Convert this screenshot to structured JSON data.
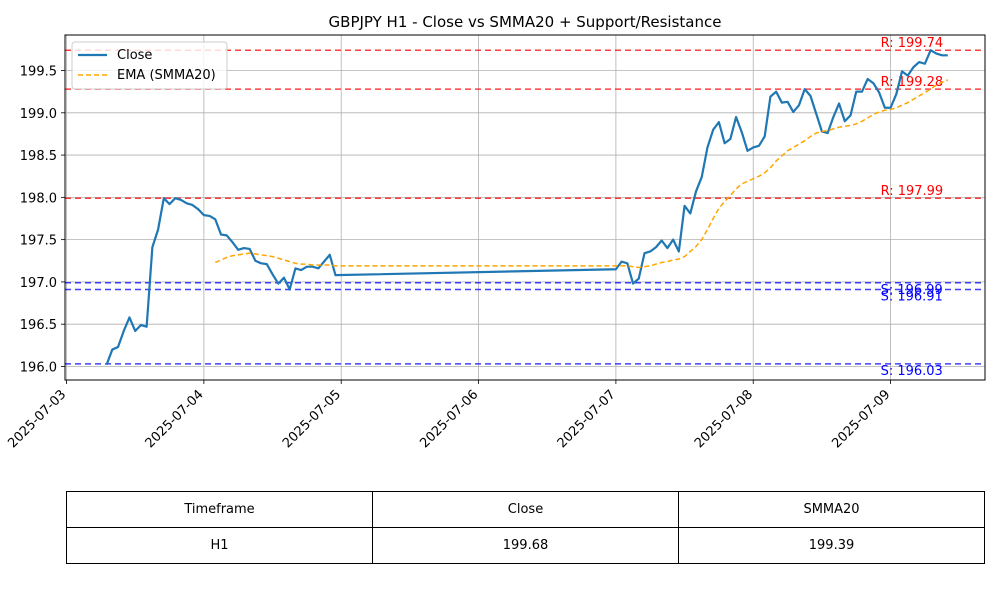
{
  "chart_data": {
    "type": "line",
    "title": "GBPJPY H1 - Close vs SMMA20 + Support/Resistance",
    "xlabel": "",
    "ylabel": "",
    "x_ticks": [
      "2025-07-03",
      "2025-07-04",
      "2025-07-05",
      "2025-07-06",
      "2025-07-07",
      "2025-07-08",
      "2025-07-09"
    ],
    "y_ticks": [
      "196.0",
      "196.5",
      "197.0",
      "197.5",
      "198.0",
      "198.5",
      "199.0",
      "199.5"
    ],
    "xlim": [
      "2025-07-02T23:44",
      "2025-07-09T16:30"
    ],
    "ylim": [
      195.84,
      199.92
    ],
    "grid": true,
    "legend_position": "top-left",
    "series": [
      {
        "name": "Close",
        "color": "#1f77b4",
        "style": "solid",
        "points": [
          [
            "2025-07-03T07:00",
            196.02
          ],
          [
            "2025-07-03T08:00",
            196.2
          ],
          [
            "2025-07-03T09:00",
            196.23
          ],
          [
            "2025-07-03T10:00",
            196.42
          ],
          [
            "2025-07-03T11:00",
            196.58
          ],
          [
            "2025-07-03T12:00",
            196.42
          ],
          [
            "2025-07-03T13:00",
            196.49
          ],
          [
            "2025-07-03T14:00",
            196.47
          ],
          [
            "2025-07-03T15:00",
            197.41
          ],
          [
            "2025-07-03T16:00",
            197.62
          ],
          [
            "2025-07-03T17:00",
            197.99
          ],
          [
            "2025-07-03T18:00",
            197.92
          ],
          [
            "2025-07-03T19:00",
            197.99
          ],
          [
            "2025-07-03T20:00",
            197.97
          ],
          [
            "2025-07-03T21:00",
            197.93
          ],
          [
            "2025-07-03T22:00",
            197.91
          ],
          [
            "2025-07-03T23:00",
            197.86
          ],
          [
            "2025-07-04T00:00",
            197.79
          ],
          [
            "2025-07-04T01:00",
            197.78
          ],
          [
            "2025-07-04T02:00",
            197.74
          ],
          [
            "2025-07-04T03:00",
            197.56
          ],
          [
            "2025-07-04T04:00",
            197.55
          ],
          [
            "2025-07-04T05:00",
            197.47
          ],
          [
            "2025-07-04T06:00",
            197.38
          ],
          [
            "2025-07-04T07:00",
            197.4
          ],
          [
            "2025-07-04T08:00",
            197.39
          ],
          [
            "2025-07-04T09:00",
            197.25
          ],
          [
            "2025-07-04T10:00",
            197.22
          ],
          [
            "2025-07-04T11:00",
            197.21
          ],
          [
            "2025-07-04T12:00",
            197.09
          ],
          [
            "2025-07-04T13:00",
            196.98
          ],
          [
            "2025-07-04T14:00",
            197.05
          ],
          [
            "2025-07-04T15:00",
            196.91
          ],
          [
            "2025-07-04T16:00",
            197.16
          ],
          [
            "2025-07-04T17:00",
            197.14
          ],
          [
            "2025-07-04T18:00",
            197.18
          ],
          [
            "2025-07-04T19:00",
            197.18
          ],
          [
            "2025-07-04T20:00",
            197.16
          ],
          [
            "2025-07-04T21:00",
            197.24
          ],
          [
            "2025-07-04T22:00",
            197.32
          ],
          [
            "2025-07-04T23:00",
            197.08
          ],
          [
            "2025-07-07T00:00",
            197.15
          ],
          [
            "2025-07-07T01:00",
            197.24
          ],
          [
            "2025-07-07T02:00",
            197.22
          ],
          [
            "2025-07-07T03:00",
            196.98
          ],
          [
            "2025-07-07T04:00",
            197.04
          ],
          [
            "2025-07-07T05:00",
            197.34
          ],
          [
            "2025-07-07T06:00",
            197.36
          ],
          [
            "2025-07-07T07:00",
            197.41
          ],
          [
            "2025-07-07T08:00",
            197.49
          ],
          [
            "2025-07-07T09:00",
            197.4
          ],
          [
            "2025-07-07T10:00",
            197.5
          ],
          [
            "2025-07-07T11:00",
            197.36
          ],
          [
            "2025-07-07T12:00",
            197.9
          ],
          [
            "2025-07-07T13:00",
            197.81
          ],
          [
            "2025-07-07T14:00",
            198.07
          ],
          [
            "2025-07-07T15:00",
            198.24
          ],
          [
            "2025-07-07T16:00",
            198.59
          ],
          [
            "2025-07-07T17:00",
            198.8
          ],
          [
            "2025-07-07T18:00",
            198.89
          ],
          [
            "2025-07-07T19:00",
            198.64
          ],
          [
            "2025-07-07T20:00",
            198.69
          ],
          [
            "2025-07-07T21:00",
            198.95
          ],
          [
            "2025-07-07T22:00",
            198.77
          ],
          [
            "2025-07-07T23:00",
            198.55
          ],
          [
            "2025-07-08T00:00",
            198.59
          ],
          [
            "2025-07-08T01:00",
            198.61
          ],
          [
            "2025-07-08T02:00",
            198.72
          ],
          [
            "2025-07-08T03:00",
            199.19
          ],
          [
            "2025-07-08T04:00",
            199.25
          ],
          [
            "2025-07-08T05:00",
            199.12
          ],
          [
            "2025-07-08T06:00",
            199.13
          ],
          [
            "2025-07-08T07:00",
            199.01
          ],
          [
            "2025-07-08T08:00",
            199.09
          ],
          [
            "2025-07-08T09:00",
            199.28
          ],
          [
            "2025-07-08T10:00",
            199.2
          ],
          [
            "2025-07-08T11:00",
            198.99
          ],
          [
            "2025-07-08T12:00",
            198.78
          ],
          [
            "2025-07-08T13:00",
            198.76
          ],
          [
            "2025-07-08T14:00",
            198.95
          ],
          [
            "2025-07-08T15:00",
            199.11
          ],
          [
            "2025-07-08T16:00",
            198.9
          ],
          [
            "2025-07-08T17:00",
            198.97
          ],
          [
            "2025-07-08T18:00",
            199.25
          ],
          [
            "2025-07-08T19:00",
            199.25
          ],
          [
            "2025-07-08T20:00",
            199.4
          ],
          [
            "2025-07-08T21:00",
            199.35
          ],
          [
            "2025-07-08T22:00",
            199.24
          ],
          [
            "2025-07-08T23:00",
            199.06
          ],
          [
            "2025-07-09T00:00",
            199.06
          ],
          [
            "2025-07-09T01:00",
            199.22
          ],
          [
            "2025-07-09T02:00",
            199.49
          ],
          [
            "2025-07-09T03:00",
            199.44
          ],
          [
            "2025-07-09T04:00",
            199.54
          ],
          [
            "2025-07-09T05:00",
            199.6
          ],
          [
            "2025-07-09T06:00",
            199.58
          ],
          [
            "2025-07-09T07:00",
            199.74
          ],
          [
            "2025-07-09T08:00",
            199.7
          ],
          [
            "2025-07-09T09:00",
            199.68
          ],
          [
            "2025-07-09T10:00",
            199.68
          ]
        ]
      },
      {
        "name": "EMA (SMMA20)",
        "color": "#ffa500",
        "style": "dashed",
        "points": [
          [
            "2025-07-04T02:00",
            197.23
          ],
          [
            "2025-07-04T03:00",
            197.26
          ],
          [
            "2025-07-04T04:00",
            197.29
          ],
          [
            "2025-07-04T05:00",
            197.31
          ],
          [
            "2025-07-04T06:00",
            197.32
          ],
          [
            "2025-07-04T07:00",
            197.33
          ],
          [
            "2025-07-04T08:00",
            197.34
          ],
          [
            "2025-07-04T09:00",
            197.33
          ],
          [
            "2025-07-04T10:00",
            197.32
          ],
          [
            "2025-07-04T11:00",
            197.31
          ],
          [
            "2025-07-04T12:00",
            197.3
          ],
          [
            "2025-07-04T13:00",
            197.28
          ],
          [
            "2025-07-04T14:00",
            197.26
          ],
          [
            "2025-07-04T15:00",
            197.24
          ],
          [
            "2025-07-04T16:00",
            197.22
          ],
          [
            "2025-07-04T17:00",
            197.21
          ],
          [
            "2025-07-04T18:00",
            197.21
          ],
          [
            "2025-07-04T19:00",
            197.2
          ],
          [
            "2025-07-04T20:00",
            197.2
          ],
          [
            "2025-07-04T21:00",
            197.2
          ],
          [
            "2025-07-04T22:00",
            197.2
          ],
          [
            "2025-07-04T23:00",
            197.19
          ],
          [
            "2025-07-07T00:00",
            197.19
          ],
          [
            "2025-07-07T01:00",
            197.19
          ],
          [
            "2025-07-07T02:00",
            197.19
          ],
          [
            "2025-07-07T03:00",
            197.18
          ],
          [
            "2025-07-07T04:00",
            197.17
          ],
          [
            "2025-07-07T05:00",
            197.18
          ],
          [
            "2025-07-07T06:00",
            197.19
          ],
          [
            "2025-07-07T07:00",
            197.21
          ],
          [
            "2025-07-07T08:00",
            197.23
          ],
          [
            "2025-07-07T09:00",
            197.24
          ],
          [
            "2025-07-07T10:00",
            197.26
          ],
          [
            "2025-07-07T11:00",
            197.27
          ],
          [
            "2025-07-07T12:00",
            197.3
          ],
          [
            "2025-07-07T13:00",
            197.36
          ],
          [
            "2025-07-07T14:00",
            197.42
          ],
          [
            "2025-07-07T15:00",
            197.5
          ],
          [
            "2025-07-07T16:00",
            197.62
          ],
          [
            "2025-07-07T17:00",
            197.75
          ],
          [
            "2025-07-07T18:00",
            197.87
          ],
          [
            "2025-07-07T19:00",
            197.95
          ],
          [
            "2025-07-07T20:00",
            198.02
          ],
          [
            "2025-07-07T21:00",
            198.1
          ],
          [
            "2025-07-07T22:00",
            198.16
          ],
          [
            "2025-07-07T23:00",
            198.19
          ],
          [
            "2025-07-08T00:00",
            198.22
          ],
          [
            "2025-07-08T01:00",
            198.25
          ],
          [
            "2025-07-08T02:00",
            198.29
          ],
          [
            "2025-07-08T03:00",
            198.35
          ],
          [
            "2025-07-08T04:00",
            198.43
          ],
          [
            "2025-07-08T05:00",
            198.49
          ],
          [
            "2025-07-08T06:00",
            198.55
          ],
          [
            "2025-07-08T07:00",
            198.59
          ],
          [
            "2025-07-08T08:00",
            198.63
          ],
          [
            "2025-07-08T09:00",
            198.67
          ],
          [
            "2025-07-08T10:00",
            198.72
          ],
          [
            "2025-07-08T11:00",
            198.76
          ],
          [
            "2025-07-08T12:00",
            198.78
          ],
          [
            "2025-07-08T13:00",
            198.79
          ],
          [
            "2025-07-08T14:00",
            198.81
          ],
          [
            "2025-07-08T15:00",
            198.83
          ],
          [
            "2025-07-08T16:00",
            198.84
          ],
          [
            "2025-07-08T17:00",
            198.85
          ],
          [
            "2025-07-08T18:00",
            198.87
          ],
          [
            "2025-07-08T19:00",
            198.9
          ],
          [
            "2025-07-08T20:00",
            198.94
          ],
          [
            "2025-07-08T21:00",
            198.98
          ],
          [
            "2025-07-08T22:00",
            199.01
          ],
          [
            "2025-07-08T23:00",
            199.03
          ],
          [
            "2025-07-09T00:00",
            199.04
          ],
          [
            "2025-07-09T01:00",
            199.06
          ],
          [
            "2025-07-09T02:00",
            199.09
          ],
          [
            "2025-07-09T03:00",
            199.12
          ],
          [
            "2025-07-09T04:00",
            199.16
          ],
          [
            "2025-07-09T05:00",
            199.2
          ],
          [
            "2025-07-09T06:00",
            199.24
          ],
          [
            "2025-07-09T07:00",
            199.28
          ],
          [
            "2025-07-09T08:00",
            199.33
          ],
          [
            "2025-07-09T09:00",
            199.36
          ],
          [
            "2025-07-09T10:00",
            199.39
          ]
        ]
      }
    ],
    "levels": [
      {
        "kind": "resistance",
        "value": 199.74,
        "label": "R: 199.74",
        "color": "#ff0000"
      },
      {
        "kind": "resistance",
        "value": 199.28,
        "label": "R: 199.28",
        "color": "#ff0000"
      },
      {
        "kind": "resistance",
        "value": 197.99,
        "label": "R: 197.99",
        "color": "#ff0000"
      },
      {
        "kind": "support",
        "value": 196.99,
        "label": "S: 196.99",
        "color": "#0000ff"
      },
      {
        "kind": "support",
        "value": 196.91,
        "label": "S: 196.91",
        "color": "#0000ff"
      },
      {
        "kind": "support",
        "value": 196.03,
        "label": "S: 196.03",
        "color": "#0000ff"
      }
    ]
  },
  "table": {
    "headers": [
      "Timeframe",
      "Close",
      "SMMA20"
    ],
    "rows": [
      [
        "H1",
        "199.68",
        "199.39"
      ]
    ]
  }
}
